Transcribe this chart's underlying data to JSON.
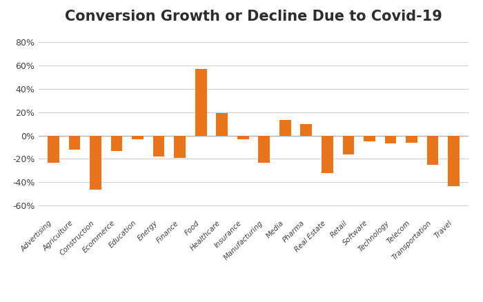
{
  "title": "Conversion Growth or Decline Due to Covid-19",
  "categories": [
    "Advertising",
    "Agriculture",
    "Construction",
    "Ecommerce",
    "Education",
    "Energy",
    "Finance",
    "Food",
    "Healthcare",
    "Insurance",
    "Manufacturing",
    "Media",
    "Pharma",
    "Real Estate",
    "Retail",
    "Software",
    "Technology",
    "Telecom",
    "Transportation",
    "Travel"
  ],
  "values": [
    -23,
    -12,
    -46,
    -13,
    -3,
    -18,
    -19,
    57,
    19,
    -3,
    -23,
    13,
    10,
    -32,
    -16,
    -5,
    -7,
    -6,
    -25,
    -43
  ],
  "bar_color": "#E8751A",
  "ylim": [
    -70,
    90
  ],
  "yticks": [
    -60,
    -40,
    -20,
    0,
    20,
    40,
    60,
    80
  ],
  "background_color": "#ffffff",
  "title_fontsize": 15,
  "grid_color": "#d0d0d0",
  "tick_label_color": "#404040",
  "title_color": "#2d2d2d"
}
